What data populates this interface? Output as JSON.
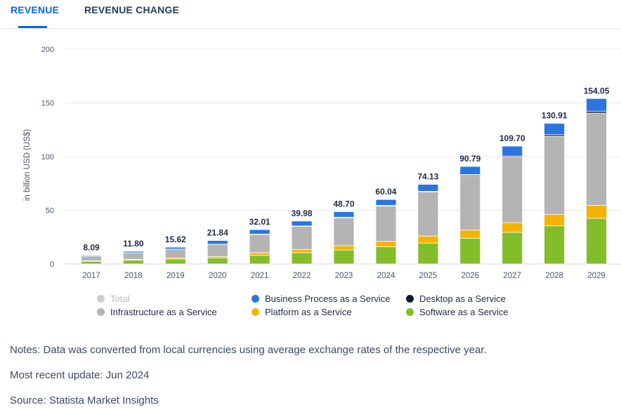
{
  "tabs": [
    {
      "label": "REVENUE",
      "active": true
    },
    {
      "label": "REVENUE CHANGE",
      "active": false
    }
  ],
  "chart_data": {
    "type": "bar",
    "stacked": true,
    "ylabel": "in billion USD (US$)",
    "ylim": [
      0,
      200
    ],
    "yticks": [
      0,
      50,
      100,
      150,
      200
    ],
    "categories": [
      "2017",
      "2018",
      "2019",
      "2020",
      "2021",
      "2022",
      "2023",
      "2024",
      "2025",
      "2026",
      "2027",
      "2028",
      "2029"
    ],
    "totals": [
      8.09,
      11.8,
      15.62,
      21.84,
      32.01,
      39.98,
      48.7,
      60.04,
      74.13,
      90.79,
      109.7,
      130.91,
      154.05
    ],
    "total_labels": [
      "8.09",
      "11.80",
      "15.62",
      "21.84",
      "32.01",
      "39.98",
      "48.70",
      "60.04",
      "74.13",
      "90.79",
      "109.70",
      "130.91",
      "154.05"
    ],
    "series": [
      {
        "name": "Software as a Service",
        "color": "#84bd2a",
        "values": [
          2.5,
          3.5,
          4.5,
          5.5,
          8.0,
          10.5,
          13.0,
          16.0,
          19.5,
          24.0,
          29.5,
          35.5,
          42.5
        ]
      },
      {
        "name": "Platform as a Service",
        "color": "#f5b300",
        "values": [
          0.5,
          0.7,
          1.0,
          1.5,
          2.5,
          3.0,
          4.0,
          5.0,
          6.5,
          7.5,
          9.0,
          10.5,
          12.0
        ]
      },
      {
        "name": "Infrastructure as a Service",
        "color": "#b4b4b4",
        "values": [
          4.2,
          6.2,
          8.2,
          11.3,
          17.0,
          21.5,
          26.0,
          33.0,
          41.0,
          51.0,
          61.0,
          73.0,
          86.0
        ]
      },
      {
        "name": "Desktop as a Service",
        "color": "#0f1b2d",
        "values": [
          0.09,
          0.1,
          0.12,
          0.14,
          0.31,
          0.38,
          0.5,
          0.54,
          0.63,
          0.79,
          1.0,
          1.41,
          1.55
        ]
      },
      {
        "name": "Business Process as a Service",
        "color": "#2a75e0",
        "values": [
          0.8,
          1.3,
          1.8,
          3.4,
          4.2,
          4.6,
          5.2,
          5.5,
          6.5,
          7.5,
          9.2,
          10.5,
          12.0
        ]
      }
    ]
  },
  "legend": [
    {
      "label": "Total",
      "color": "#c9cdd3",
      "muted": true
    },
    {
      "label": "Business Process as a Service",
      "color": "#2a75e0",
      "muted": false
    },
    {
      "label": "Desktop as a Service",
      "color": "#0f1b2d",
      "muted": false
    },
    {
      "label": "Infrastructure as a Service",
      "color": "#b4b4b4",
      "muted": false
    },
    {
      "label": "Platform as a Service",
      "color": "#f5b300",
      "muted": false
    },
    {
      "label": "Software as a Service",
      "color": "#84bd2a",
      "muted": false
    }
  ],
  "notes": {
    "line1": "Notes: Data was converted from local currencies using average exchange rates of the respective year.",
    "line2": "Most recent update: Jun 2024",
    "line3": "Source: Statista Market Insights"
  }
}
